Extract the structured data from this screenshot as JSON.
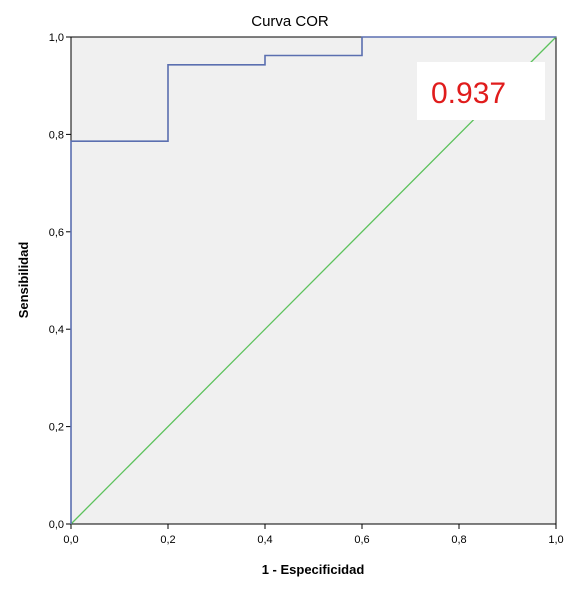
{
  "chart_data": {
    "type": "line",
    "title": "Curva COR",
    "xlabel": "1 - Especificidad",
    "ylabel": "Sensibilidad",
    "xlim": [
      0,
      1
    ],
    "ylim": [
      0,
      1
    ],
    "grid": false,
    "x_ticks": [
      "0,0",
      "0,2",
      "0,4",
      "0,6",
      "0,8",
      "1,0"
    ],
    "y_ticks": [
      "0,0",
      "0,2",
      "0,4",
      "0,6",
      "0,8",
      "1,0"
    ],
    "x_tick_values": [
      0,
      0.2,
      0.4,
      0.6,
      0.8,
      1.0
    ],
    "y_tick_values": [
      0,
      0.2,
      0.4,
      0.6,
      0.8,
      1.0
    ],
    "series": [
      {
        "color": "#5b6fb0",
        "step": true,
        "x": [
          0,
          0,
          0.2,
          0.2,
          0.4,
          0.4,
          0.6,
          0.6,
          1.0
        ],
        "y": [
          0,
          0.786,
          0.786,
          0.943,
          0.943,
          0.962,
          0.962,
          1.0,
          1.0
        ]
      },
      {
        "color": "#5cc25c",
        "x": [
          0,
          1
        ],
        "y": [
          0,
          1
        ]
      }
    ],
    "annotations": [
      {
        "text": "0.937",
        "color": "#e01c1c"
      }
    ]
  },
  "colors": {
    "plot_background": "#f0f0f0",
    "roc_line": "#5b6fb0",
    "reference_line": "#5cc25c",
    "annotation_text": "#e01c1c"
  }
}
